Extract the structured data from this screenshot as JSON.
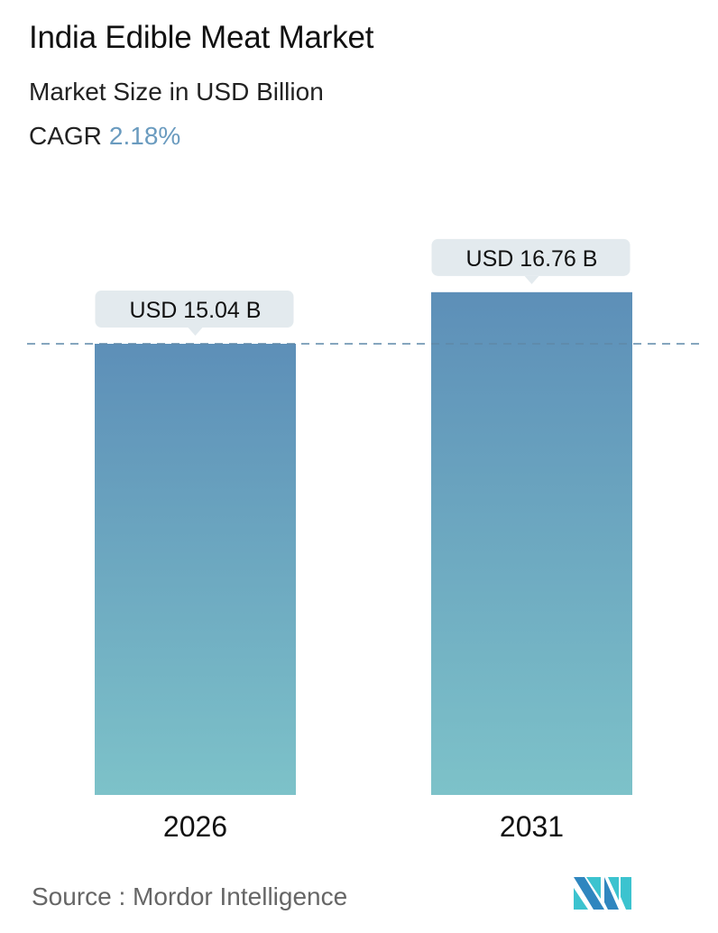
{
  "header": {
    "title": "India Edible Meat Market",
    "subtitle": "Market Size in USD Billion",
    "cagr_label": "CAGR",
    "cagr_value": "2.18%"
  },
  "chart_data": {
    "type": "bar",
    "title": "India Edible Meat Market",
    "ylabel": "Market Size in USD Billion",
    "categories": [
      "2026",
      "2031"
    ],
    "values": [
      15.04,
      16.76
    ],
    "data_labels": [
      "USD 15.04 B",
      "USD 16.76 B"
    ],
    "grid": false,
    "reference_line": {
      "value": 15.04,
      "style": "dashed"
    },
    "colors": {
      "bar_top": "#5d8fb8",
      "bar_bottom": "#7dc2c9",
      "label_bg": "#e3eaee",
      "dash": "#5f88a8",
      "cagr": "#6a9bbf"
    }
  },
  "footer": {
    "source": "Source :  Mordor Intelligence",
    "logo_text": "Mordor Intelligence"
  }
}
